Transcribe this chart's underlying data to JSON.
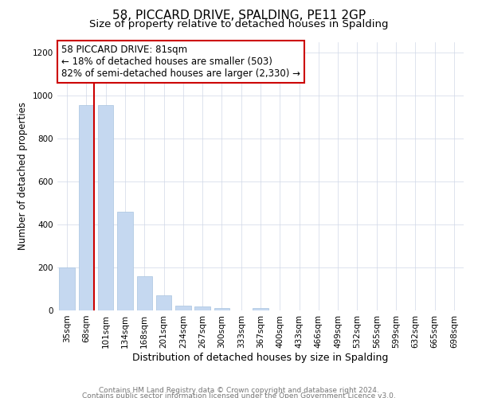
{
  "title": "58, PICCARD DRIVE, SPALDING, PE11 2GP",
  "subtitle": "Size of property relative to detached houses in Spalding",
  "xlabel": "Distribution of detached houses by size in Spalding",
  "ylabel": "Number of detached properties",
  "bar_labels": [
    "35sqm",
    "68sqm",
    "101sqm",
    "134sqm",
    "168sqm",
    "201sqm",
    "234sqm",
    "267sqm",
    "300sqm",
    "333sqm",
    "367sqm",
    "400sqm",
    "433sqm",
    "466sqm",
    "499sqm",
    "532sqm",
    "565sqm",
    "599sqm",
    "632sqm",
    "665sqm",
    "698sqm"
  ],
  "bar_values": [
    200,
    955,
    955,
    460,
    160,
    72,
    22,
    18,
    10,
    0,
    12,
    0,
    0,
    0,
    0,
    0,
    0,
    0,
    0,
    0,
    0
  ],
  "bar_color": "#c5d8f0",
  "bar_edge_color": "#a8c4e0",
  "redline_color": "#cc0000",
  "annotation_title": "58 PICCARD DRIVE: 81sqm",
  "annotation_line1": "← 18% of detached houses are smaller (503)",
  "annotation_line2": "82% of semi-detached houses are larger (2,330) →",
  "annotation_box_color": "#ffffff",
  "annotation_box_edge": "#cc0000",
  "footer1": "Contains HM Land Registry data © Crown copyright and database right 2024.",
  "footer2": "Contains public sector information licensed under the Open Government Licence v3.0.",
  "ylim": [
    0,
    1250
  ],
  "yticks": [
    0,
    200,
    400,
    600,
    800,
    1000,
    1200
  ],
  "title_fontsize": 11,
  "subtitle_fontsize": 9.5,
  "xlabel_fontsize": 9,
  "ylabel_fontsize": 8.5,
  "tick_fontsize": 7.5,
  "footer_fontsize": 6.5,
  "ann_fontsize": 8.5
}
